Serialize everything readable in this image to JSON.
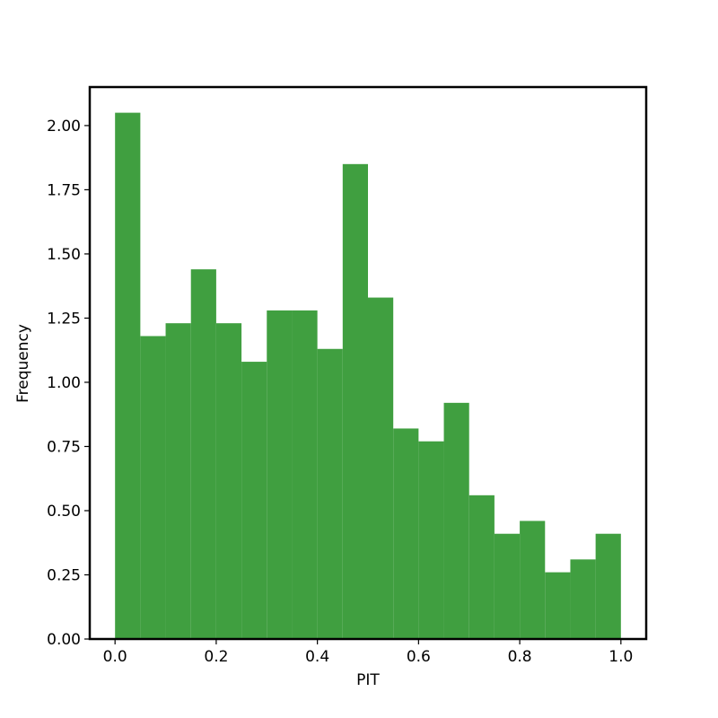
{
  "chart_data": {
    "type": "histogram",
    "x_label": "PIT",
    "y_label": "Frequency",
    "bins": [
      0,
      0.05,
      0.1,
      0.15,
      0.2,
      0.25,
      0.3,
      0.35,
      0.4,
      0.45,
      0.5,
      0.55,
      0.6,
      0.65,
      0.7,
      0.75,
      0.8,
      0.85,
      0.9,
      0.95,
      1
    ],
    "values": [
      2.05,
      1.18,
      1.23,
      1.44,
      1.23,
      1.08,
      1.28,
      1.28,
      1.13,
      1.85,
      1.33,
      0.82,
      0.77,
      0.92,
      0.56,
      0.41,
      0.46,
      0.26,
      0.31,
      0.41
    ],
    "color": "#409f40",
    "xlim": [
      -0.05,
      1.05
    ],
    "ylim": [
      0,
      2.15
    ],
    "xticks": [
      {
        "value": 0,
        "label": "0.0"
      },
      0.2,
      0.4,
      0.6,
      0.8,
      {
        "value": 1,
        "label": "1.0"
      }
    ],
    "yticks": [
      {
        "value": 0,
        "label": "0.00"
      },
      {
        "value": 0.25,
        "label": "0.25"
      },
      {
        "value": 0.5,
        "label": "0.50"
      },
      {
        "value": 0.75,
        "label": "0.75"
      },
      {
        "value": 1,
        "label": "1.00"
      },
      {
        "value": 1.25,
        "label": "1.25"
      },
      {
        "value": 1.5,
        "label": "1.50"
      },
      {
        "value": 1.75,
        "label": "1.75"
      },
      {
        "value": 2,
        "label": "2.00"
      }
    ]
  }
}
